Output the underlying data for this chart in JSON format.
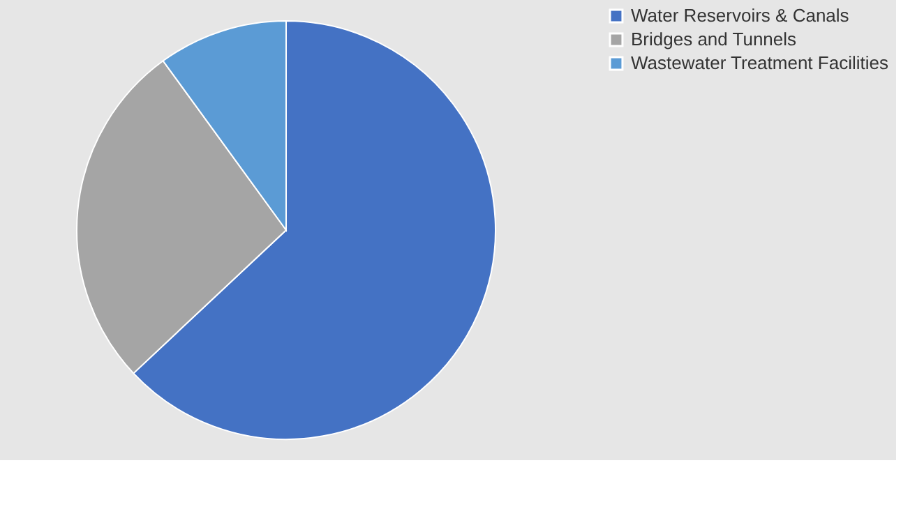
{
  "chart_data": {
    "type": "pie",
    "categories": [
      "Water Reservoirs & Canals",
      "Bridges and Tunnels",
      "Wastewater Treatment Facilities"
    ],
    "values": [
      63,
      27,
      10
    ],
    "colors": [
      "#4472c4",
      "#a5a5a5",
      "#5b9bd5"
    ],
    "legend": "right"
  }
}
